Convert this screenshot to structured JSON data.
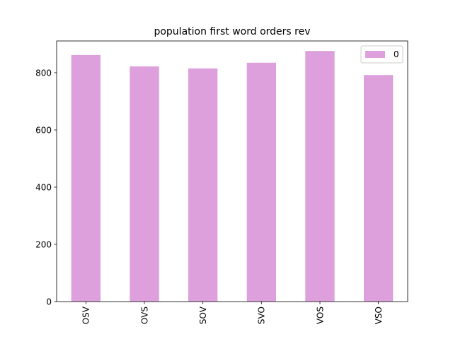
{
  "chart_data": {
    "type": "bar",
    "title": "population first word orders rev",
    "xlabel": "",
    "ylabel": "",
    "categories": [
      "OSV",
      "OVS",
      "SOV",
      "SVO",
      "VOS",
      "VSO"
    ],
    "series": [
      {
        "name": "0",
        "values": [
          862,
          822,
          815,
          835,
          876,
          792
        ],
        "color": "#dda0dd"
      }
    ],
    "ylim": [
      0,
      911
    ],
    "yticks": [
      0,
      200,
      400,
      600,
      800
    ],
    "grid": false,
    "legend_position": "top-right"
  }
}
